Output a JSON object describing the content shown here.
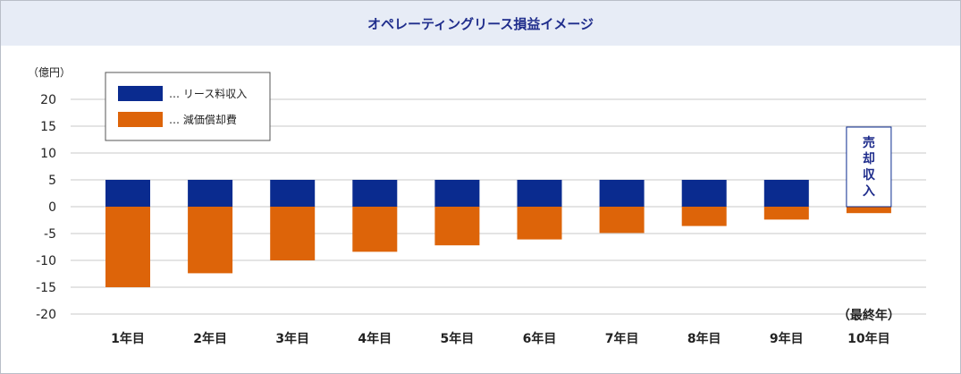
{
  "title": "オペレーティングリース損益イメージ",
  "chart_data": {
    "type": "bar",
    "title": "オペレーティングリース損益イメージ",
    "ylabel": "（億円）",
    "xlabel": "",
    "ylim": [
      -20,
      20
    ],
    "yticks": [
      20,
      15,
      10,
      5,
      0,
      -5,
      -10,
      -15,
      -20
    ],
    "categories": [
      "1年目",
      "2年目",
      "3年目",
      "4年目",
      "5年目",
      "6年目",
      "7年目",
      "8年目",
      "9年目",
      "10年目"
    ],
    "category_notes": {
      "9": "（最終年）"
    },
    "series": [
      {
        "name": "リース料収入",
        "color": "#0a2b8f",
        "values": [
          5,
          5,
          5,
          5,
          5,
          5,
          5,
          5,
          5,
          0
        ]
      },
      {
        "name": "減価償却費",
        "color": "#dd6409",
        "values": [
          -15,
          -12.4,
          -10,
          -8.4,
          -7.2,
          -6.1,
          -4.9,
          -3.6,
          -2.4,
          -1.2
        ]
      }
    ],
    "legend": {
      "placement": "top-left",
      "entries": [
        "… リース料収入",
        "… 減価償却費"
      ]
    },
    "annotation": {
      "text": "売却収入",
      "category": "10年目",
      "value": 5
    },
    "grid": true
  }
}
